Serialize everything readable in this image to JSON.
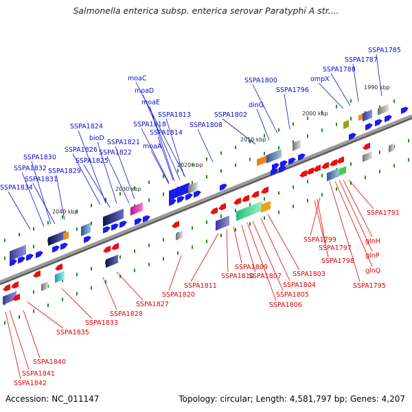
{
  "title": "Salmonella enterica subsp. enterica serovar Paratyphi A str....",
  "footer": {
    "accession": "Accession: NC_011147",
    "summary": "Topology: circular; Length: 4,581,797 bp; Genes: 4,207"
  },
  "colors": {
    "forward_label": "#0a0acc",
    "reverse_label": "#dd0000",
    "forward_gene": "#1a1af0",
    "reverse_gene": "#e81010",
    "backbone": "#888888",
    "tick": "#1e8c1e"
  },
  "kbp_markers": [
    "1990 kbp",
    "2000 kbp",
    "2010 kbp",
    "2020 kbp",
    "2030 kbp",
    "2040 kbp"
  ],
  "forward_labels": [
    "SSPA1785",
    "SSPA1787",
    "SSPA1788",
    "ompX",
    "1990 kbp",
    "SSPA1796",
    "SSPA1800",
    "dinG",
    "SSPA1802",
    "SSPA1808",
    "moaC",
    "moaD",
    "moaE",
    "SSPA1813",
    "SSPA1818",
    "SSPA1814",
    "moaA",
    "SSPA1824",
    "bioD",
    "SSPA1821",
    "SSPA1826",
    "SSPA1825",
    "SSPA1822",
    "SSPA1830",
    "SSPA1832",
    "SSPA1829",
    "SSPA1831",
    "SSPA1834"
  ],
  "reverse_labels": [
    "SSPA1791",
    "glnH",
    "glnP",
    "glnQ",
    "SSPA1795",
    "SSPA1799",
    "SSPA1797",
    "SSPA1798",
    "SSPA1803",
    "SSPA1804",
    "SSPA1805",
    "SSPA1806",
    "SSPA1807",
    "SSPA1809",
    "SSPA1810",
    "SSPA1811",
    "SSPA1820",
    "SSPA1827",
    "SSPA1828",
    "SSPA1833",
    "SSPA1835",
    "SSPA1840",
    "SSPA1841",
    "SSPA1842"
  ]
}
